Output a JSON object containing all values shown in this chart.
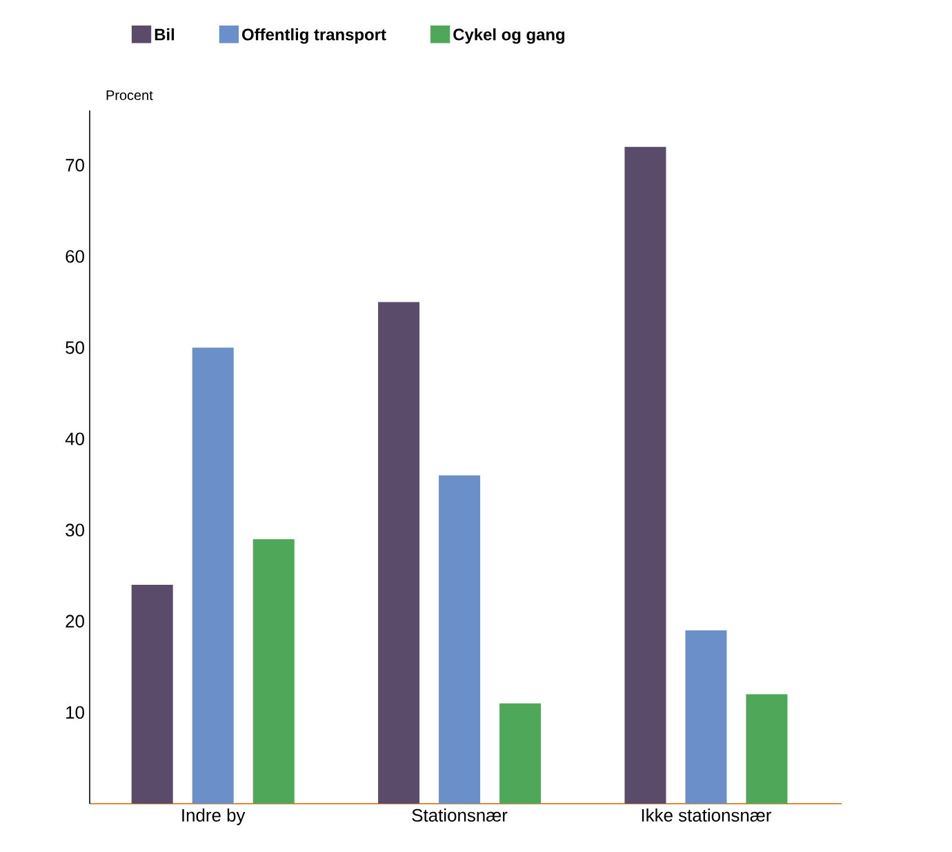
{
  "chart_data": {
    "type": "bar",
    "ylabel": "Procent",
    "categories": [
      "Indre by",
      "Stationsnær",
      "Ikke stationsnær"
    ],
    "series": [
      {
        "name": "Bil",
        "color": "#5b4b6b",
        "values": [
          24,
          55,
          72
        ]
      },
      {
        "name": "Offentlig transport",
        "color": "#6b8fc9",
        "values": [
          50,
          36,
          19
        ]
      },
      {
        "name": "Cykel og gang",
        "color": "#4fa85a",
        "values": [
          29,
          11,
          12
        ]
      }
    ],
    "ylim": [
      0,
      76
    ],
    "yticks": [
      10,
      20,
      30,
      40,
      50,
      60,
      70
    ],
    "grid": false,
    "legend": "top"
  }
}
